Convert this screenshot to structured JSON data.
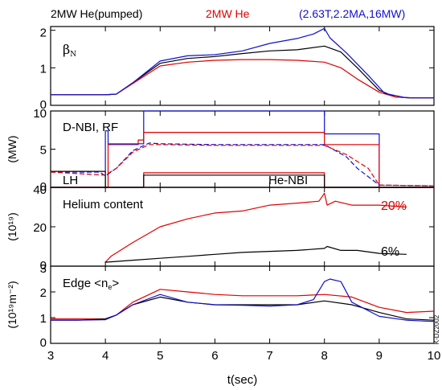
{
  "legend": [
    {
      "text": "2MW He(pumped)",
      "color": "#000000"
    },
    {
      "text": "2MW He",
      "color": "#e00000"
    },
    {
      "text": "(2.63T,2.2MA,16MW)",
      "color": "#1010d0"
    }
  ],
  "xlabel": "t(sec)",
  "watermark": "K-DZ2002",
  "chart_data": [
    {
      "type": "line",
      "panel_label": "βN",
      "ylabel": "",
      "xlim": [
        3,
        10
      ],
      "ylim": [
        0,
        2.1
      ],
      "yticks": [
        "0",
        "1",
        "2"
      ],
      "series": [
        {
          "color": "#000000",
          "x": [
            3,
            3.5,
            4,
            4.2,
            4.5,
            5,
            5.5,
            6,
            6.5,
            7,
            7.5,
            8,
            8.3,
            8.6,
            9,
            9.3,
            9.6,
            10
          ],
          "y": [
            0.28,
            0.28,
            0.28,
            0.3,
            0.6,
            1.12,
            1.25,
            1.3,
            1.38,
            1.45,
            1.48,
            1.58,
            1.42,
            1.0,
            0.4,
            0.22,
            0.2,
            0.2
          ]
        },
        {
          "color": "#e00000",
          "x": [
            3,
            3.5,
            4,
            4.2,
            4.5,
            5,
            5.5,
            6,
            6.5,
            7,
            7.5,
            8,
            8.3,
            8.6,
            9,
            9.3,
            9.6,
            10
          ],
          "y": [
            0.28,
            0.28,
            0.28,
            0.3,
            0.58,
            1.05,
            1.15,
            1.2,
            1.22,
            1.22,
            1.2,
            1.15,
            1.0,
            0.7,
            0.35,
            0.22,
            0.2,
            0.2
          ]
        },
        {
          "color": "#1010d0",
          "x": [
            3,
            3.5,
            4,
            4.2,
            4.5,
            5,
            5.5,
            6,
            6.5,
            7,
            7.5,
            7.8,
            8,
            8.1,
            8.4,
            8.8,
            9.1,
            9.5,
            10
          ],
          "y": [
            0.28,
            0.28,
            0.28,
            0.3,
            0.6,
            1.18,
            1.32,
            1.35,
            1.45,
            1.65,
            1.78,
            1.9,
            2.05,
            1.8,
            1.4,
            0.8,
            0.32,
            0.2,
            0.2
          ]
        }
      ]
    },
    {
      "type": "line",
      "panel_label": "D-NBI, RF",
      "annotations": [
        "LH",
        "He-NBI"
      ],
      "ylabel": "(MW)",
      "xlim": [
        3,
        10
      ],
      "ylim": [
        0,
        10
      ],
      "yticks": [
        "0",
        "5",
        "10"
      ],
      "series": [
        {
          "color": "#1010d0",
          "x": [
            3,
            4,
            4,
            4.05,
            4.05,
            4.6,
            4.6,
            4.7,
            4.7,
            8.0,
            8.0,
            9.0,
            9.0,
            10
          ],
          "y": [
            0,
            0,
            7.4,
            7.4,
            5.6,
            5.6,
            5.7,
            5.7,
            10.0,
            10.0,
            7.0,
            7.0,
            0,
            0
          ]
        },
        {
          "color": "#e00000",
          "x": [
            3,
            4.05,
            4.05,
            4.6,
            4.6,
            4.7,
            4.7,
            8.0,
            8.0,
            9.0,
            9.0,
            10
          ],
          "y": [
            0,
            0,
            5.7,
            5.7,
            6.2,
            6.2,
            7.2,
            7.2,
            5.6,
            5.6,
            0,
            0
          ]
        },
        {
          "color": "#e00000",
          "x": [
            3,
            4.7,
            4.7,
            8.0,
            8.0,
            10
          ],
          "y": [
            0,
            0,
            1.9,
            1.9,
            0,
            0
          ]
        },
        {
          "color": "#000000",
          "x": [
            3,
            4.7,
            4.7,
            8.0,
            8.0,
            10
          ],
          "y": [
            0,
            0,
            1.6,
            1.6,
            0,
            0
          ]
        },
        {
          "color": "#000000",
          "x": [
            3,
            4.0,
            4.0,
            10
          ],
          "y": [
            2.1,
            2.1,
            0,
            0
          ]
        },
        {
          "color": "#1010d0",
          "dashed": true,
          "x": [
            3,
            3.9,
            4.0,
            4.2,
            4.5,
            4.8,
            5.0,
            6.0,
            7.0,
            8.0,
            8.4,
            8.6,
            9.0,
            10
          ],
          "y": [
            2.0,
            2.0,
            1.5,
            2.5,
            4.8,
            5.8,
            5.7,
            5.6,
            5.6,
            5.6,
            4.0,
            2.5,
            0.3,
            0.2
          ]
        },
        {
          "color": "#e00000",
          "dashed": true,
          "x": [
            3,
            4.0,
            4.2,
            4.5,
            4.8,
            5.0,
            6.0,
            7.0,
            8.0,
            8.4,
            8.8,
            9.0,
            10
          ],
          "y": [
            2.0,
            1.6,
            2.5,
            4.6,
            5.6,
            5.6,
            5.5,
            5.5,
            5.5,
            4.3,
            2.5,
            0.3,
            0.2
          ]
        }
      ]
    },
    {
      "type": "line",
      "panel_label": "Helium content",
      "annotations": [
        "20%",
        "6%"
      ],
      "ylabel": "(10¹⁹)",
      "xlim": [
        3,
        10
      ],
      "ylim": [
        0,
        40
      ],
      "yticks": [
        "0",
        "20",
        "40"
      ],
      "series": [
        {
          "color": "#e00000",
          "x": [
            4.0,
            4.1,
            4.5,
            5.0,
            5.5,
            6.0,
            6.5,
            7.0,
            7.5,
            7.9,
            8.0,
            8.05,
            8.2,
            8.5,
            9.0,
            9.5
          ],
          "y": [
            2,
            5,
            12,
            20,
            24,
            27,
            28,
            31,
            32,
            33,
            37,
            31,
            33,
            31,
            31,
            30
          ]
        },
        {
          "color": "#000000",
          "x": [
            4.0,
            4.5,
            5.0,
            5.5,
            6.0,
            6.5,
            7.0,
            7.5,
            8.0,
            8.05,
            8.3,
            8.6,
            9.0,
            9.5
          ],
          "y": [
            2,
            3,
            4,
            5,
            6,
            7,
            7.5,
            8,
            9,
            10,
            8,
            8,
            6.5,
            6
          ]
        }
      ]
    },
    {
      "type": "line",
      "panel_label": "Edge <ne>",
      "ylabel": "(10¹⁹m⁻²)",
      "xlim": [
        3,
        10
      ],
      "ylim": [
        0,
        3
      ],
      "yticks": [
        "0",
        "1",
        "2",
        "3"
      ],
      "series": [
        {
          "color": "#e00000",
          "x": [
            3,
            3.5,
            4.0,
            4.2,
            4.5,
            5.0,
            5.5,
            6.0,
            6.5,
            7.0,
            7.5,
            8.0,
            8.5,
            9.0,
            9.5,
            10
          ],
          "y": [
            0.95,
            0.95,
            0.95,
            1.1,
            1.6,
            2.1,
            2.0,
            1.9,
            1.85,
            1.85,
            1.85,
            1.9,
            1.8,
            1.4,
            1.2,
            1.25
          ]
        },
        {
          "color": "#000000",
          "x": [
            3,
            3.5,
            4.0,
            4.2,
            4.5,
            5.0,
            5.5,
            6.0,
            6.5,
            7.0,
            7.5,
            8.0,
            8.5,
            9.0,
            9.5,
            10
          ],
          "y": [
            0.9,
            0.9,
            0.95,
            1.1,
            1.5,
            1.8,
            1.6,
            1.5,
            1.5,
            1.5,
            1.5,
            1.65,
            1.5,
            1.2,
            0.95,
            0.9
          ]
        },
        {
          "color": "#1010d0",
          "x": [
            3,
            3.5,
            4.0,
            4.2,
            4.5,
            5.0,
            5.5,
            6.0,
            6.5,
            7.0,
            7.5,
            7.8,
            8.0,
            8.1,
            8.3,
            8.5,
            9.0,
            9.5,
            10
          ],
          "y": [
            0.9,
            0.9,
            0.92,
            1.1,
            1.5,
            1.9,
            1.6,
            1.5,
            1.48,
            1.45,
            1.5,
            1.7,
            2.4,
            2.5,
            2.4,
            1.6,
            1.05,
            0.9,
            0.85
          ]
        }
      ]
    }
  ],
  "xticks": [
    "3",
    "4",
    "5",
    "6",
    "7",
    "8",
    "9",
    "10"
  ]
}
